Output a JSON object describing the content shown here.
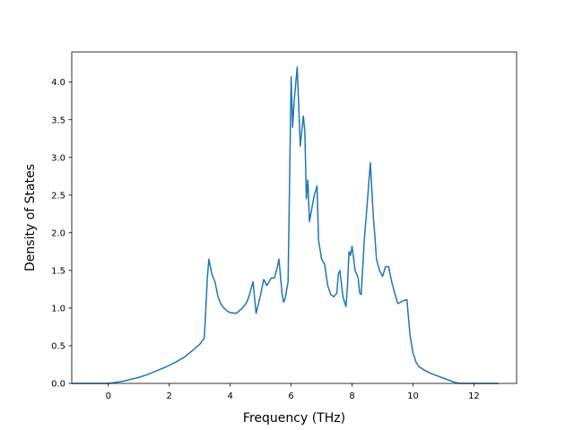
{
  "chart_data": {
    "type": "line",
    "title": "",
    "xlabel": "Frequency (THz)",
    "ylabel": "Density of States",
    "xlim": [
      -1.2,
      13.4
    ],
    "ylim": [
      0,
      4.4
    ],
    "grid": false,
    "line_color": "#1f77b4",
    "x_ticks": [
      0,
      2,
      4,
      6,
      8,
      10,
      12
    ],
    "x_tick_labels": [
      "0",
      "2",
      "4",
      "6",
      "8",
      "10",
      "12"
    ],
    "y_ticks": [
      0.0,
      0.5,
      1.0,
      1.5,
      2.0,
      2.5,
      3.0,
      3.5,
      4.0
    ],
    "y_tick_labels": [
      "0.0",
      "0.5",
      "1.0",
      "1.5",
      "2.0",
      "2.5",
      "3.0",
      "3.5",
      "4.0"
    ],
    "series": [
      {
        "x": [
          -1.2,
          -1.0,
          -0.5,
          0.0,
          0.2,
          0.5,
          0.8,
          1.0,
          1.3,
          1.6,
          1.9,
          2.2,
          2.5,
          2.8,
          3.0,
          3.15,
          3.22,
          3.25,
          3.3,
          3.4,
          3.5,
          3.6,
          3.7,
          3.8,
          3.9,
          4.0,
          4.2,
          4.4,
          4.55,
          4.65,
          4.7,
          4.75,
          4.85,
          5.0,
          5.1,
          5.2,
          5.35,
          5.45,
          5.55,
          5.6,
          5.7,
          5.75,
          5.8,
          5.9,
          6.0,
          6.05,
          6.1,
          6.2,
          6.3,
          6.4,
          6.45,
          6.5,
          6.55,
          6.6,
          6.75,
          6.8,
          6.85,
          6.9,
          7.0,
          7.1,
          7.2,
          7.3,
          7.4,
          7.5,
          7.55,
          7.6,
          7.7,
          7.8,
          7.85,
          7.9,
          7.95,
          8.0,
          8.1,
          8.2,
          8.25,
          8.3,
          8.4,
          8.5,
          8.6,
          8.7,
          8.75,
          8.8,
          8.9,
          9.0,
          9.1,
          9.2,
          9.3,
          9.4,
          9.5,
          9.6,
          9.7,
          9.8,
          9.9,
          10.0,
          10.05,
          10.1,
          10.2,
          10.4,
          10.6,
          10.8,
          11.0,
          11.2,
          11.4,
          11.55,
          11.6,
          11.8,
          12.0,
          12.5,
          12.8
        ],
        "y": [
          0.0,
          0.0,
          0.0,
          0.0,
          0.01,
          0.03,
          0.06,
          0.08,
          0.12,
          0.17,
          0.22,
          0.28,
          0.35,
          0.45,
          0.52,
          0.6,
          1.15,
          1.4,
          1.65,
          1.45,
          1.35,
          1.15,
          1.05,
          1.0,
          0.96,
          0.94,
          0.93,
          1.0,
          1.08,
          1.2,
          1.28,
          1.35,
          0.93,
          1.18,
          1.38,
          1.3,
          1.4,
          1.4,
          1.55,
          1.65,
          1.2,
          1.08,
          1.12,
          1.35,
          4.07,
          3.4,
          3.75,
          4.2,
          3.15,
          3.55,
          3.35,
          2.45,
          2.7,
          2.15,
          2.48,
          2.55,
          2.62,
          1.9,
          1.65,
          1.58,
          1.3,
          1.18,
          1.15,
          1.2,
          1.45,
          1.5,
          1.15,
          1.02,
          1.3,
          1.75,
          1.7,
          1.82,
          1.5,
          1.4,
          1.2,
          1.18,
          1.9,
          2.4,
          2.93,
          2.2,
          1.95,
          1.65,
          1.5,
          1.42,
          1.55,
          1.55,
          1.35,
          1.2,
          1.06,
          1.08,
          1.1,
          1.11,
          0.65,
          0.4,
          0.35,
          0.28,
          0.22,
          0.17,
          0.13,
          0.1,
          0.07,
          0.04,
          0.01,
          0.0,
          0.0,
          0.0,
          0.0,
          0.0,
          0.0
        ]
      }
    ]
  }
}
